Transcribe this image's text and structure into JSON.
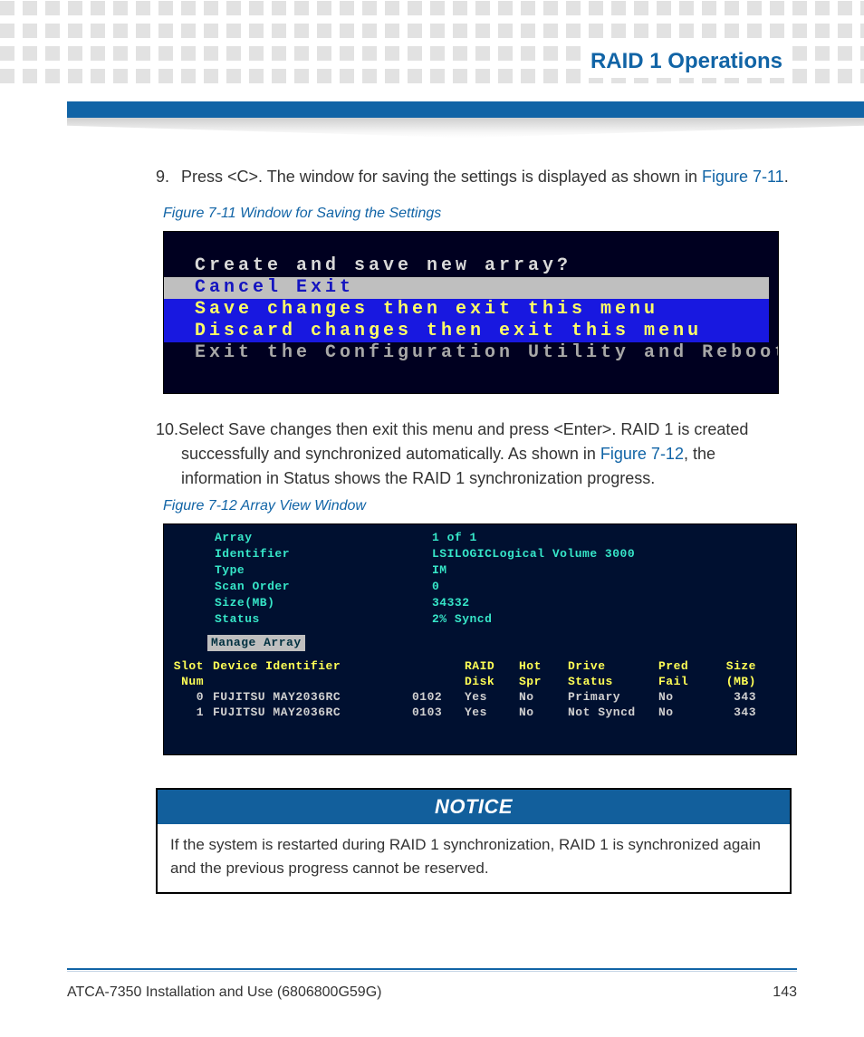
{
  "header": {
    "title": "RAID 1 Operations"
  },
  "step9": {
    "num": "9.",
    "pre": "Press <C>. The window for saving the settings is displayed as shown in ",
    "link": "Figure 7-11",
    "post": "."
  },
  "fig11": {
    "caption": "Figure 7-11     Window for Saving the Settings"
  },
  "term1": {
    "q": "Create and save new array?",
    "opt1": "Cancel Exit",
    "opt2": "Save changes then exit this menu",
    "opt3": "Discard changes then exit this menu",
    "opt4": "Exit the Configuration Utility and Reboot"
  },
  "step10": {
    "num": "10.",
    "line1a": "Select Save changes then exit this menu and press <Enter>. RAID 1 is created",
    "line2a": "successfully and synchronized automatically. As shown in ",
    "link": "Figure 7-12",
    "line2b": ", the",
    "line3": "information in Status shows the RAID 1 synchronization progress."
  },
  "fig12": {
    "caption": "Figure 7-12     Array View Window"
  },
  "term2": {
    "kv": [
      {
        "k": "Array",
        "v": "1 of 1"
      },
      {
        "k": "Identifier",
        "v": "LSILOGICLogical Volume  3000"
      },
      {
        "k": "Type",
        "v": "IM"
      },
      {
        "k": "Scan Order",
        "v": "0"
      },
      {
        "k": "Size(MB)",
        "v": "34332"
      },
      {
        "k": "Status",
        "v": " 2% Syncd"
      }
    ],
    "manage": "Manage Array",
    "hdr1": {
      "slot": "Slot",
      "dev": "Device Identifier",
      "id": "",
      "raid": "RAID",
      "spr": "Hot",
      "stat": "Drive",
      "pred": "Pred",
      "size": "Size"
    },
    "hdr2": {
      "slot": "Num",
      "dev": "",
      "id": "",
      "raid": "Disk",
      "spr": "Spr",
      "stat": "Status",
      "pred": "Fail",
      "size": "(MB)"
    },
    "rows": [
      {
        "slot": "0",
        "dev": "FUJITSU MAY2036RC",
        "id": "0102",
        "raid": "Yes",
        "spr": "No",
        "stat": "Primary",
        "pred": "No",
        "size": "343"
      },
      {
        "slot": "1",
        "dev": "FUJITSU MAY2036RC",
        "id": "0103",
        "raid": "Yes",
        "spr": "No",
        "stat": "Not Syncd",
        "pred": "No",
        "size": "343"
      }
    ]
  },
  "notice": {
    "title": "NOTICE",
    "body": "If the system is restarted during RAID 1 synchronization, RAID 1 is synchronized again and the previous progress cannot be reserved."
  },
  "footer": {
    "doc": "ATCA-7350 Installation and Use (6806800G59G)",
    "page": "143"
  },
  "colors": {
    "brand_blue": "#1164a6",
    "term_bg": "#001030",
    "term_cyan": "#36e6c8",
    "term_yellow": "#ffff55",
    "term_highlight_bg": "#bfbfbf",
    "term_blue_row": "#1818e0"
  }
}
